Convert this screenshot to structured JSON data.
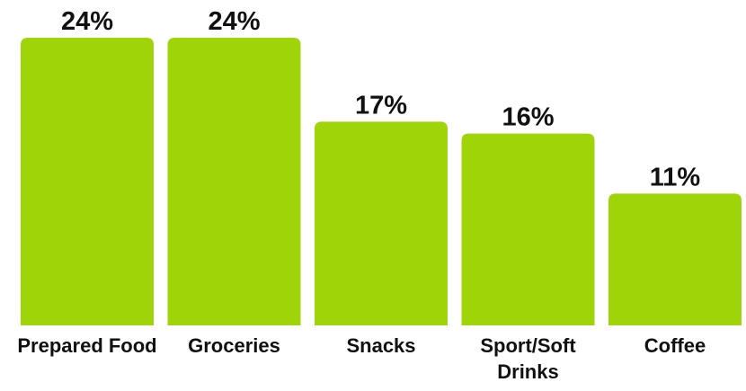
{
  "chart_data": {
    "type": "bar",
    "categories": [
      "Prepared Food",
      "Groceries",
      "Snacks",
      "Sport/Soft Drinks",
      "Coffee"
    ],
    "category_lines": [
      [
        "Prepared Food"
      ],
      [
        "Groceries"
      ],
      [
        "Snacks"
      ],
      [
        "Sport/Soft",
        "Drinks"
      ],
      [
        "Coffee"
      ]
    ],
    "values": [
      24,
      24,
      17,
      16,
      11
    ],
    "value_labels": [
      "24%",
      "24%",
      "17%",
      "16%",
      "11%"
    ],
    "unit": "%",
    "ylim": [
      0,
      24
    ],
    "grid": false,
    "legend": "none",
    "bar_color": "#9FD408",
    "title": "",
    "xlabel": "",
    "ylabel": ""
  }
}
